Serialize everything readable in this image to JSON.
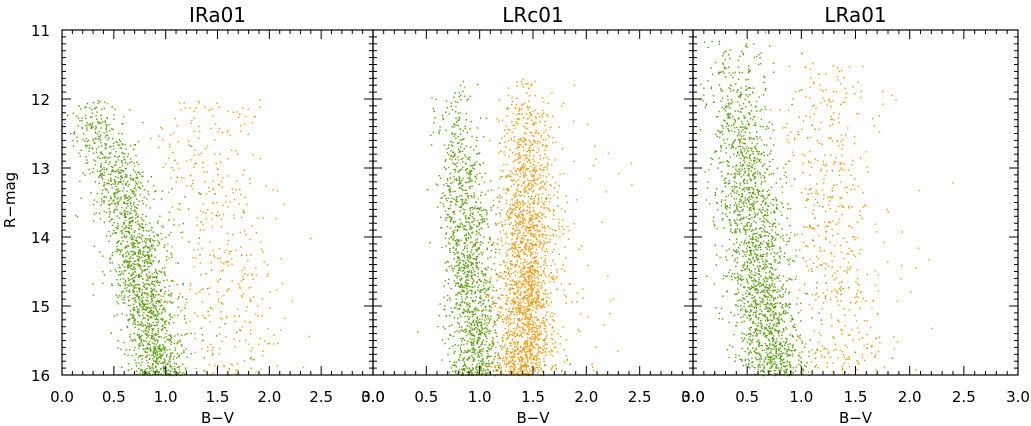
{
  "chart_data": [
    {
      "type": "scatter",
      "title": "IRa01",
      "xlabel": "B−V",
      "ylabel": "R−mag",
      "xlim": [
        0.0,
        3.0
      ],
      "ylim": [
        16.0,
        11.0
      ],
      "y_axis_inverted": true,
      "grid": false,
      "x_ticks": [
        "0.0",
        "0.5",
        "1.0",
        "1.5",
        "2.0",
        "2.5",
        "3.0"
      ],
      "y_ticks": [
        "11",
        "12",
        "13",
        "14",
        "15",
        "16"
      ],
      "series": [
        {
          "color": "#5a9e0f",
          "points": [
            [
              0.33,
              12.5
            ],
            [
              0.5,
              13.0
            ],
            [
              0.6,
              13.5
            ],
            [
              0.7,
              14.0
            ],
            [
              0.75,
              14.5
            ],
            [
              0.82,
              15.0
            ],
            [
              0.88,
              15.5
            ],
            [
              0.93,
              16.0
            ]
          ]
        },
        {
          "color": "#f39a0c",
          "points": [
            [
              1.4,
              12.6
            ],
            [
              1.45,
              13.2
            ],
            [
              1.5,
              13.8
            ],
            [
              1.55,
              14.4
            ],
            [
              1.6,
              15.0
            ],
            [
              1.65,
              15.6
            ]
          ]
        }
      ]
    },
    {
      "type": "scatter",
      "title": "LRc01",
      "xlabel": "B−V",
      "ylabel": "",
      "xlim": [
        0.0,
        3.0
      ],
      "ylim": [
        16.0,
        11.0
      ],
      "y_axis_inverted": true,
      "grid": false,
      "x_ticks": [
        "0.0",
        "0.5",
        "1.0",
        "1.5",
        "2.0",
        "2.5",
        "3.0"
      ],
      "y_ticks": [
        "11",
        "12",
        "13",
        "14",
        "15",
        "16"
      ],
      "series": [
        {
          "color": "#5a9e0f",
          "points": [
            [
              0.8,
              12.5
            ],
            [
              0.85,
              13.5
            ],
            [
              0.9,
              14.5
            ],
            [
              0.95,
              15.5
            ]
          ]
        },
        {
          "color": "#f39a0c",
          "points": [
            [
              1.45,
              12.2
            ],
            [
              1.45,
              13.0
            ],
            [
              1.45,
              14.0
            ],
            [
              1.42,
              15.0
            ],
            [
              1.4,
              16.0
            ]
          ]
        }
      ]
    },
    {
      "type": "scatter",
      "title": "LRa01",
      "xlabel": "B−V",
      "ylabel": "",
      "xlim": [
        0.0,
        3.0
      ],
      "ylim": [
        16.0,
        11.0
      ],
      "y_axis_inverted": true,
      "grid": false,
      "x_ticks": [
        "0.0",
        "0.5",
        "1.0",
        "1.5",
        "2.0",
        "2.5",
        "3.0"
      ],
      "y_ticks": [
        "11",
        "12",
        "13",
        "14",
        "15",
        "16"
      ],
      "series": [
        {
          "color": "#5a9e0f",
          "points": [
            [
              0.4,
              11.5
            ],
            [
              0.45,
              12.5
            ],
            [
              0.5,
              13.5
            ],
            [
              0.6,
              14.5
            ],
            [
              0.7,
              15.5
            ],
            [
              0.78,
              16.0
            ]
          ]
        },
        {
          "color": "#f39a0c",
          "points": [
            [
              1.2,
              12.0
            ],
            [
              1.25,
              13.0
            ],
            [
              1.3,
              14.0
            ],
            [
              1.35,
              15.0
            ],
            [
              1.4,
              16.0
            ]
          ]
        }
      ]
    }
  ]
}
